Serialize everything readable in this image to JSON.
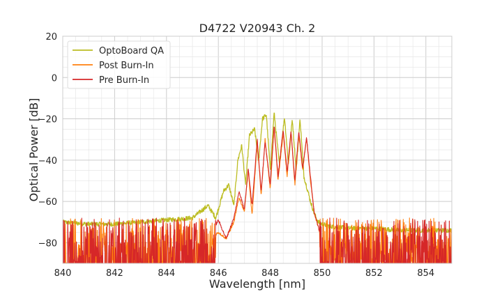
{
  "chart_data": {
    "type": "line",
    "title": "D4722 V20943 Ch. 2",
    "xlabel": "Wavelength [nm]",
    "ylabel": "Optical Power [dB]",
    "xlim": [
      840,
      855
    ],
    "ylim": [
      -90,
      20
    ],
    "xticks": [
      840,
      842,
      844,
      846,
      848,
      850,
      852,
      854
    ],
    "yticks": [
      20,
      0,
      -20,
      -40,
      -60,
      -80
    ],
    "xtick_labels": [
      "840",
      "842",
      "844",
      "846",
      "848",
      "850",
      "852",
      "854"
    ],
    "ytick_labels": [
      "20",
      "0",
      "−20",
      "−40",
      "−60",
      "−80"
    ],
    "grid": true,
    "legend_position": "top-left",
    "series": [
      {
        "name": "OptoBoard QA",
        "color": "#bcbd22",
        "x": [
          840.0,
          841.0,
          842.0,
          843.0,
          844.0,
          845.0,
          845.3,
          845.6,
          845.9,
          846.2,
          846.4,
          846.6,
          846.75,
          846.9,
          847.05,
          847.2,
          847.4,
          847.55,
          847.7,
          847.85,
          848.0,
          848.15,
          848.35,
          848.55,
          848.7,
          848.85,
          849.0,
          849.15,
          849.3,
          849.45,
          849.55,
          849.7,
          849.85,
          850.0,
          850.3,
          851.0,
          852.0,
          853.0,
          854.0,
          855.0
        ],
        "y": [
          -70,
          -71,
          -71,
          -70,
          -69,
          -68,
          -65,
          -62,
          -68,
          -55,
          -52,
          -62,
          -40,
          -33,
          -52,
          -28,
          -25,
          -41,
          -20,
          -18,
          -45,
          -17,
          -42,
          -19,
          -42,
          -20,
          -45,
          -20,
          -48,
          -55,
          -60,
          -66,
          -70,
          -71,
          -72,
          -73,
          -73,
          -74,
          -74,
          -74
        ]
      },
      {
        "name": "Post Burn-In",
        "color": "#ff7f0e",
        "x": [
          840.0,
          842.0,
          844.0,
          845.0,
          845.5,
          846.0,
          846.3,
          846.6,
          846.8,
          847.0,
          847.15,
          847.3,
          847.5,
          847.65,
          847.8,
          848.0,
          848.15,
          848.3,
          848.5,
          848.65,
          848.8,
          848.95,
          849.1,
          849.25,
          849.4,
          849.55,
          849.7,
          849.85,
          850.0,
          852.0,
          855.0
        ],
        "y": [
          -80,
          -80,
          -80,
          -80,
          -80,
          -75,
          -78,
          -70,
          -58,
          -65,
          -45,
          -67,
          -31,
          -57,
          -30,
          -54,
          -24,
          -50,
          -27,
          -48,
          -26,
          -52,
          -27,
          -45,
          -29,
          -50,
          -66,
          -72,
          -80,
          -80,
          -80
        ]
      },
      {
        "name": "Pre Burn-In",
        "color": "#d62728",
        "x": [
          840.0,
          842.0,
          844.0,
          845.0,
          845.5,
          846.0,
          846.3,
          846.6,
          846.8,
          847.0,
          847.15,
          847.3,
          847.5,
          847.65,
          847.8,
          848.0,
          848.15,
          848.3,
          848.5,
          848.65,
          848.8,
          848.95,
          849.1,
          849.25,
          849.4,
          849.55,
          849.7,
          849.85,
          850.0,
          852.0,
          855.0
        ],
        "y": [
          -80,
          -80,
          -80,
          -80,
          -80,
          -69,
          -78,
          -68,
          -55,
          -64,
          -44,
          -62,
          -30,
          -55,
          -31,
          -52,
          -23,
          -48,
          -25,
          -46,
          -26,
          -50,
          -26,
          -44,
          -29,
          -48,
          -66,
          -72,
          -80,
          -80,
          -80
        ]
      }
    ]
  }
}
